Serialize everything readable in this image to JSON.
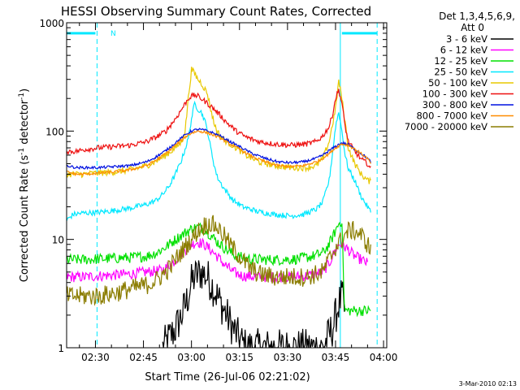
{
  "chart_data": {
    "type": "line",
    "title": "HESSI Observing Summary Count Rates, Corrected",
    "xlabel": "Start Time (26-Jul-06 02:21:02)",
    "ylabel_main": "Corrected Count Rate (s",
    "ylabel_sup1": "-1",
    "ylabel_mid": " detector",
    "ylabel_sup2": "-1",
    "ylabel_end": ")",
    "yscale": "log",
    "ylim": [
      1,
      1000
    ],
    "xlim_min": [
      0,
      100
    ],
    "x_unit": "minutes since 02:21:02",
    "x_ticks": [
      {
        "t": 9,
        "label": "02:30"
      },
      {
        "t": 24,
        "label": "02:45"
      },
      {
        "t": 39,
        "label": "03:00"
      },
      {
        "t": 54,
        "label": "03:15"
      },
      {
        "t": 69,
        "label": "03:30"
      },
      {
        "t": 84,
        "label": "03:45"
      },
      {
        "t": 99,
        "label": "04:00"
      }
    ],
    "y_ticks": [
      {
        "v": 1,
        "label": "1"
      },
      {
        "v": 10,
        "label": "10"
      },
      {
        "v": 100,
        "label": "100"
      },
      {
        "v": 1000,
        "label": "1000"
      }
    ],
    "legend": {
      "header1": "Det 1,3,4,5,6,9,",
      "header2": "Att 0",
      "position": "right"
    },
    "annotation_n": "N",
    "series": [
      {
        "name": "3 - 6 keV",
        "color": "#000000",
        "points": [
          [
            30,
            1.0
          ],
          [
            34,
            1.5
          ],
          [
            36,
            2
          ],
          [
            38,
            3
          ],
          [
            39,
            4
          ],
          [
            40,
            4.5
          ],
          [
            42,
            5
          ],
          [
            44,
            4.5
          ],
          [
            46,
            3.5
          ],
          [
            48,
            2.6
          ],
          [
            50,
            2
          ],
          [
            52,
            1.5
          ],
          [
            54,
            1.2
          ],
          [
            56,
            1.0
          ],
          [
            80,
            1.0
          ],
          [
            83,
            1.5
          ],
          [
            85,
            2.5
          ],
          [
            86,
            3
          ],
          [
            87,
            2
          ]
        ]
      },
      {
        "name": "6 - 12 keV",
        "color": "#ff00ff",
        "points": [
          [
            0,
            4.5
          ],
          [
            5,
            4.5
          ],
          [
            10,
            4.6
          ],
          [
            15,
            4.7
          ],
          [
            20,
            4.8
          ],
          [
            25,
            5
          ],
          [
            30,
            5.2
          ],
          [
            33,
            6
          ],
          [
            35,
            7
          ],
          [
            37,
            8
          ],
          [
            39,
            9
          ],
          [
            41,
            9.5
          ],
          [
            43,
            9
          ],
          [
            45,
            8
          ],
          [
            47,
            7
          ],
          [
            49,
            6
          ],
          [
            52,
            5
          ],
          [
            55,
            4.6
          ],
          [
            60,
            4.5
          ],
          [
            65,
            4.5
          ],
          [
            70,
            4.5
          ],
          [
            75,
            4.6
          ],
          [
            80,
            5
          ],
          [
            82,
            6
          ],
          [
            84,
            8
          ],
          [
            85,
            9
          ],
          [
            86,
            9
          ],
          [
            88,
            8
          ],
          [
            90,
            7
          ],
          [
            92,
            6.5
          ],
          [
            94,
            6
          ]
        ]
      },
      {
        "name": "12 - 25 keV",
        "color": "#00e000",
        "points": [
          [
            0,
            6.5
          ],
          [
            5,
            6.5
          ],
          [
            10,
            6.6
          ],
          [
            15,
            6.7
          ],
          [
            20,
            6.8
          ],
          [
            25,
            7
          ],
          [
            28,
            7.5
          ],
          [
            31,
            8.5
          ],
          [
            34,
            10
          ],
          [
            37,
            11.5
          ],
          [
            39,
            12.5
          ],
          [
            41,
            13
          ],
          [
            43,
            12.5
          ],
          [
            45,
            11
          ],
          [
            47,
            9.5
          ],
          [
            50,
            8
          ],
          [
            53,
            7
          ],
          [
            57,
            6.6
          ],
          [
            62,
            6.5
          ],
          [
            67,
            6.5
          ],
          [
            72,
            6.6
          ],
          [
            77,
            7
          ],
          [
            80,
            7.5
          ],
          [
            82,
            9
          ],
          [
            84,
            12
          ],
          [
            85,
            14
          ],
          [
            86,
            15
          ],
          [
            86.8,
            2.2
          ],
          [
            95,
            2.2
          ]
        ]
      },
      {
        "name": "25 - 50 keV",
        "color": "#00e8ff",
        "points": [
          [
            0,
            15
          ],
          [
            2,
            17
          ],
          [
            5,
            17.5
          ],
          [
            10,
            17.8
          ],
          [
            15,
            18.5
          ],
          [
            20,
            19.5
          ],
          [
            25,
            21
          ],
          [
            28,
            23
          ],
          [
            30,
            26
          ],
          [
            32,
            31
          ],
          [
            34,
            40
          ],
          [
            36,
            55
          ],
          [
            38,
            85
          ],
          [
            39,
            130
          ],
          [
            40,
            180
          ],
          [
            41,
            160
          ],
          [
            42,
            150
          ],
          [
            43,
            130
          ],
          [
            44,
            100
          ],
          [
            45,
            70
          ],
          [
            46,
            50
          ],
          [
            47,
            38
          ],
          [
            49,
            30
          ],
          [
            52,
            23
          ],
          [
            55,
            20
          ],
          [
            60,
            18
          ],
          [
            65,
            17
          ],
          [
            70,
            16.5
          ],
          [
            74,
            17
          ],
          [
            78,
            19
          ],
          [
            80,
            22
          ],
          [
            82,
            35
          ],
          [
            83,
            60
          ],
          [
            84,
            110
          ],
          [
            85,
            150
          ],
          [
            86,
            100
          ],
          [
            87,
            60
          ],
          [
            88,
            45
          ],
          [
            90,
            35
          ],
          [
            92,
            25
          ],
          [
            94,
            20
          ],
          [
            95,
            18
          ]
        ]
      },
      {
        "name": "50 - 100 keV",
        "color": "#e8c800",
        "points": [
          [
            0,
            40
          ],
          [
            5,
            40
          ],
          [
            10,
            41
          ],
          [
            15,
            42
          ],
          [
            20,
            44
          ],
          [
            25,
            48
          ],
          [
            28,
            53
          ],
          [
            31,
            60
          ],
          [
            34,
            70
          ],
          [
            36,
            80
          ],
          [
            37,
            100
          ],
          [
            38,
            200
          ],
          [
            39,
            370
          ],
          [
            40,
            340
          ],
          [
            41,
            300
          ],
          [
            42,
            280
          ],
          [
            43,
            250
          ],
          [
            44,
            220
          ],
          [
            45,
            160
          ],
          [
            46,
            120
          ],
          [
            47,
            100
          ],
          [
            48,
            90
          ],
          [
            50,
            80
          ],
          [
            53,
            70
          ],
          [
            56,
            60
          ],
          [
            60,
            52
          ],
          [
            65,
            48
          ],
          [
            70,
            46
          ],
          [
            75,
            46
          ],
          [
            78,
            48
          ],
          [
            80,
            55
          ],
          [
            82,
            80
          ],
          [
            84,
            160
          ],
          [
            85,
            290
          ],
          [
            86,
            200
          ],
          [
            87,
            120
          ],
          [
            88,
            70
          ],
          [
            90,
            50
          ],
          [
            92,
            40
          ],
          [
            94,
            35
          ],
          [
            95,
            34
          ]
        ]
      },
      {
        "name": "100 - 300 keV",
        "color": "#ee1010",
        "points": [
          [
            0,
            65
          ],
          [
            3,
            65
          ],
          [
            6,
            68
          ],
          [
            10,
            70
          ],
          [
            15,
            72
          ],
          [
            20,
            74
          ],
          [
            25,
            80
          ],
          [
            28,
            88
          ],
          [
            31,
            100
          ],
          [
            34,
            130
          ],
          [
            36,
            160
          ],
          [
            38,
            200
          ],
          [
            39,
            210
          ],
          [
            40,
            215
          ],
          [
            41,
            210
          ],
          [
            42,
            200
          ],
          [
            43,
            190
          ],
          [
            44,
            180
          ],
          [
            46,
            160
          ],
          [
            48,
            140
          ],
          [
            50,
            120
          ],
          [
            53,
            100
          ],
          [
            56,
            88
          ],
          [
            60,
            80
          ],
          [
            65,
            76
          ],
          [
            70,
            74
          ],
          [
            75,
            76
          ],
          [
            78,
            80
          ],
          [
            80,
            90
          ],
          [
            82,
            110
          ],
          [
            83,
            140
          ],
          [
            84,
            200
          ],
          [
            85,
            240
          ],
          [
            86,
            180
          ],
          [
            87,
            110
          ],
          [
            88,
            80
          ],
          [
            90,
            65
          ],
          [
            92,
            55
          ],
          [
            94,
            50
          ],
          [
            95,
            45
          ]
        ]
      },
      {
        "name": "300 - 800 keV",
        "color": "#0010e0",
        "points": [
          [
            0,
            48
          ],
          [
            3,
            46
          ],
          [
            6,
            46
          ],
          [
            10,
            46
          ],
          [
            15,
            47
          ],
          [
            20,
            48
          ],
          [
            25,
            52
          ],
          [
            28,
            58
          ],
          [
            31,
            66
          ],
          [
            34,
            78
          ],
          [
            37,
            92
          ],
          [
            39,
            100
          ],
          [
            41,
            104
          ],
          [
            43,
            102
          ],
          [
            45,
            98
          ],
          [
            48,
            90
          ],
          [
            51,
            80
          ],
          [
            54,
            72
          ],
          [
            58,
            62
          ],
          [
            62,
            56
          ],
          [
            66,
            52
          ],
          [
            70,
            51
          ],
          [
            74,
            52
          ],
          [
            78,
            56
          ],
          [
            80,
            60
          ],
          [
            82,
            66
          ],
          [
            84,
            72
          ],
          [
            86,
            78
          ],
          [
            88,
            75
          ],
          [
            90,
            68
          ],
          [
            92,
            62
          ],
          [
            94,
            56
          ],
          [
            95,
            52
          ]
        ]
      },
      {
        "name": "800 - 7000 keV",
        "color": "#ff8c00",
        "points": [
          [
            0,
            42
          ],
          [
            3,
            40
          ],
          [
            6,
            40
          ],
          [
            10,
            41
          ],
          [
            15,
            42
          ],
          [
            20,
            44
          ],
          [
            25,
            48
          ],
          [
            28,
            54
          ],
          [
            31,
            62
          ],
          [
            34,
            74
          ],
          [
            37,
            88
          ],
          [
            39,
            96
          ],
          [
            41,
            100
          ],
          [
            43,
            98
          ],
          [
            45,
            94
          ],
          [
            48,
            86
          ],
          [
            51,
            76
          ],
          [
            54,
            68
          ],
          [
            58,
            58
          ],
          [
            62,
            52
          ],
          [
            66,
            48
          ],
          [
            70,
            47
          ],
          [
            74,
            48
          ],
          [
            78,
            52
          ],
          [
            80,
            56
          ],
          [
            82,
            62
          ],
          [
            84,
            70
          ],
          [
            86,
            76
          ],
          [
            88,
            74
          ],
          [
            90,
            68
          ],
          [
            92,
            62
          ],
          [
            94,
            56
          ],
          [
            95,
            50
          ]
        ]
      },
      {
        "name": "7000 - 20000 keV",
        "color": "#8b7d00",
        "points": [
          [
            0,
            3
          ],
          [
            3,
            3
          ],
          [
            6,
            3
          ],
          [
            10,
            3
          ],
          [
            15,
            3.2
          ],
          [
            20,
            3.5
          ],
          [
            25,
            3.8
          ],
          [
            28,
            4.2
          ],
          [
            31,
            5
          ],
          [
            34,
            6.5
          ],
          [
            37,
            8.5
          ],
          [
            39,
            10
          ],
          [
            41,
            12
          ],
          [
            43,
            13.5
          ],
          [
            45,
            14
          ],
          [
            47,
            13
          ],
          [
            49,
            11
          ],
          [
            51,
            9
          ],
          [
            54,
            7
          ],
          [
            57,
            5.5
          ],
          [
            60,
            4.8
          ],
          [
            65,
            4.5
          ],
          [
            70,
            4.5
          ],
          [
            75,
            4.5
          ],
          [
            80,
            5
          ],
          [
            82,
            6.5
          ],
          [
            84,
            8.5
          ],
          [
            86,
            10
          ],
          [
            88,
            12
          ],
          [
            90,
            12
          ],
          [
            92,
            11
          ],
          [
            94,
            9
          ],
          [
            95,
            8
          ]
        ]
      }
    ],
    "vertical_lines": [
      {
        "t": 9.5,
        "style": "dashed"
      },
      {
        "t": 85.5,
        "style": "solid"
      },
      {
        "t": 97,
        "style": "dashed"
      }
    ],
    "attenuator_bars": [
      {
        "from": 0,
        "to": 9,
        "level": 800
      },
      {
        "from": 86,
        "to": 97,
        "level": 800
      }
    ]
  },
  "footer_date": "3-Mar-2010 02:13"
}
